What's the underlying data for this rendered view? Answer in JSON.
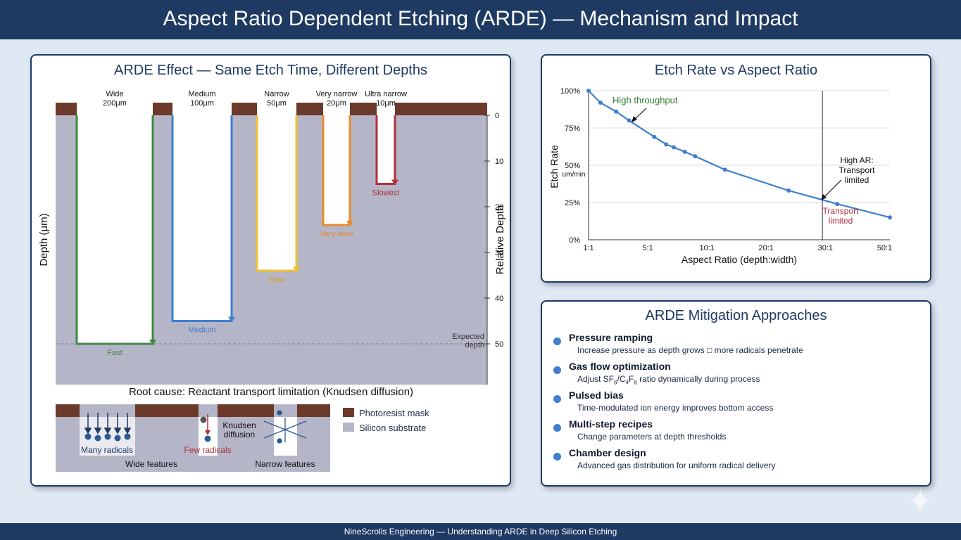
{
  "title": "Aspect Ratio Dependent Etching (ARDE) — Mechanism and Impact",
  "footer": "NineScrolls Engineering — Understanding ARDE in Deep Silicon Etching",
  "arde_panel": {
    "title": "ARDE Effect — Same Etch Time, Different Depths",
    "left_axis_label": "Depth (μm)",
    "right_axis_label": "Relative Depth",
    "expected_depth_label": [
      "Expected",
      "depth"
    ],
    "ticks": [
      "0",
      "10",
      "20",
      "30",
      "40",
      "50"
    ],
    "features": [
      {
        "name": "Wide",
        "width": "200μm",
        "rate": "Fast",
        "depth": 50,
        "color": "#3a8a3a"
      },
      {
        "name": "Medium",
        "width": "100μm",
        "rate": "Medium",
        "depth": 45,
        "color": "#3f7fd0"
      },
      {
        "name": "Narrow",
        "width": "50μm",
        "rate": "Slow",
        "depth": 34,
        "color": "#f0c030"
      },
      {
        "name": "Very narrow",
        "width": "20μm",
        "rate": "Very slow",
        "depth": 24,
        "color": "#e8892b"
      },
      {
        "name": "Ultra narrow",
        "width": "10μm",
        "rate": "Slowest",
        "depth": 15,
        "color": "#b0303a"
      }
    ],
    "root_cause": "Root cause: Reactant transport limitation (Knudsen diffusion)",
    "mechanism": {
      "many_radicals": "Many radicals",
      "few_radicals": "Few radicals",
      "knudsen": [
        "Knudsen",
        "diffusion"
      ],
      "wide_features": "Wide features",
      "narrow_features": "Narrow features"
    },
    "legend": [
      {
        "label": "Photoresist mask",
        "color": "#6b3a2a"
      },
      {
        "label": "Silicon substrate",
        "color": "#b5b5c8"
      }
    ]
  },
  "rate_chart": {
    "title": "Etch Rate vs Aspect Ratio",
    "ylabel": "Etch Rate",
    "yunit": "um/min",
    "xlabel": "Aspect Ratio (depth:width)",
    "annotations": {
      "high_throughput": "High throughput",
      "high_ar": [
        "High AR:",
        "Transport",
        "limited"
      ],
      "transport_limited": [
        "Transport",
        "limited"
      ]
    }
  },
  "chart_data": {
    "type": "line",
    "title": "Etch Rate vs Aspect Ratio",
    "xlabel": "Aspect Ratio (depth:width)",
    "ylabel": "Etch Rate",
    "x_ticks": [
      "1:1",
      "5:1",
      "10:1",
      "20:1",
      "30:1",
      "50:1"
    ],
    "y_ticks": [
      "0%",
      "25%",
      "50%",
      "75%",
      "100%"
    ],
    "ylim": [
      0,
      100
    ],
    "series": [
      {
        "points": [
          {
            "x": 0,
            "y": 100
          },
          {
            "x": 0.4,
            "y": 92
          },
          {
            "x": 0.93,
            "y": 86
          },
          {
            "x": 1.37,
            "y": 80
          },
          {
            "x": 2.22,
            "y": 69
          },
          {
            "x": 2.62,
            "y": 64
          },
          {
            "x": 2.88,
            "y": 62
          },
          {
            "x": 3.25,
            "y": 59
          },
          {
            "x": 3.6,
            "y": 56
          },
          {
            "x": 4.61,
            "y": 47
          },
          {
            "x": 6.76,
            "y": 33
          },
          {
            "x": 8.4,
            "y": 24
          },
          {
            "x": 10.18,
            "y": 15
          }
        ]
      }
    ],
    "x_tick_positions": [
      0,
      2,
      4,
      6,
      8,
      10
    ],
    "vline_x": 7.9,
    "grid": true
  },
  "mitigation": {
    "title": "ARDE Mitigation Approaches",
    "items": [
      {
        "title": "Pressure ramping",
        "desc": "Increase pressure as depth grows □ more radicals penetrate"
      },
      {
        "title": "Gas flow optimization",
        "desc_pre": "Adjust SF",
        "sub1": "6",
        "desc_mid": "/C",
        "sub2": "4",
        "desc_mid2": "F",
        "sub3": "8",
        "desc_post": " ratio dynamically during process"
      },
      {
        "title": "Pulsed bias",
        "desc": "Time-modulated ion energy improves bottom access"
      },
      {
        "title": "Multi-step recipes",
        "desc": "Change parameters at depth thresholds"
      },
      {
        "title": "Chamber design",
        "desc": "Advanced gas distribution for uniform radical delivery"
      }
    ]
  }
}
